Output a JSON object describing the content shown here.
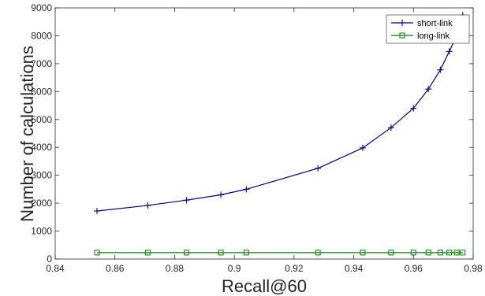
{
  "chart_data": {
    "type": "line",
    "xlabel": "Recall@60",
    "ylabel": "Number of calculations",
    "xlim": [
      0.84,
      0.98
    ],
    "ylim": [
      0,
      9000
    ],
    "xticks": [
      "0.84",
      "0.86",
      "0.88",
      "0.9",
      "0.92",
      "0.94",
      "0.96",
      "0.98"
    ],
    "yticks": [
      "0",
      "1000",
      "2000",
      "3000",
      "4000",
      "5000",
      "6000",
      "7000",
      "8000",
      "9000"
    ],
    "grid": false,
    "legend_position": "top-right",
    "series": [
      {
        "name": "short-link",
        "color": "#000080",
        "marker": "plus",
        "points": [
          [
            0.854,
            1720
          ],
          [
            0.871,
            1920
          ],
          [
            0.884,
            2110
          ],
          [
            0.8955,
            2300
          ],
          [
            0.904,
            2500
          ],
          [
            0.928,
            3250
          ],
          [
            0.943,
            3980
          ],
          [
            0.9525,
            4710
          ],
          [
            0.96,
            5400
          ],
          [
            0.965,
            6090
          ],
          [
            0.969,
            6780
          ],
          [
            0.972,
            7440
          ],
          [
            0.9745,
            8000
          ],
          [
            0.9765,
            8740
          ]
        ]
      },
      {
        "name": "long-link",
        "color": "#008000",
        "marker": "square",
        "points": [
          [
            0.854,
            230
          ],
          [
            0.871,
            230
          ],
          [
            0.884,
            230
          ],
          [
            0.8955,
            230
          ],
          [
            0.904,
            230
          ],
          [
            0.928,
            230
          ],
          [
            0.943,
            230
          ],
          [
            0.9525,
            230
          ],
          [
            0.96,
            230
          ],
          [
            0.965,
            230
          ],
          [
            0.969,
            230
          ],
          [
            0.972,
            230
          ],
          [
            0.9745,
            230
          ],
          [
            0.9765,
            230
          ]
        ]
      }
    ]
  }
}
